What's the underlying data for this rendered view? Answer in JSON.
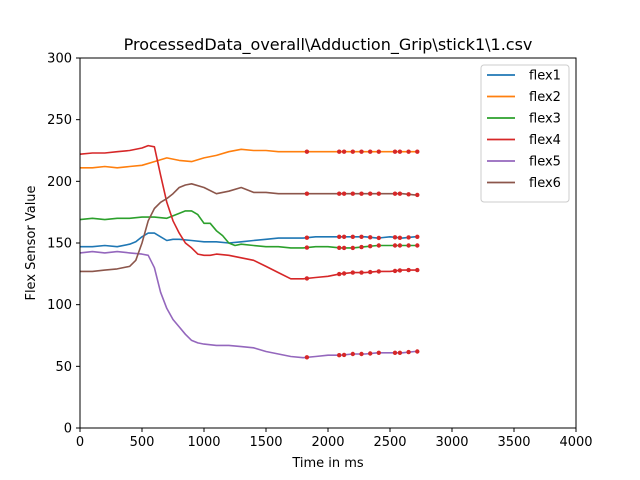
{
  "chart_data": {
    "type": "line",
    "title": "ProcessedData_overall\\Adduction_Grip\\stick1\\1.csv",
    "xlabel": "Time in ms",
    "ylabel": "Flex Sensor Value",
    "xlim": [
      0,
      4000
    ],
    "ylim": [
      0,
      300
    ],
    "xticks": [
      0,
      500,
      1000,
      1500,
      2000,
      2500,
      3000,
      3500,
      4000
    ],
    "yticks": [
      0,
      50,
      100,
      150,
      200,
      250,
      300
    ],
    "grid": false,
    "legend_position": "top-right",
    "marker_color": "#d62728",
    "marker_x": [
      1830,
      2090,
      2130,
      2200,
      2270,
      2340,
      2410,
      2540,
      2580,
      2650,
      2720
    ],
    "series": [
      {
        "name": "flex1",
        "color": "#1f77b4",
        "x": [
          0,
          100,
          200,
          300,
          400,
          450,
          500,
          550,
          600,
          650,
          700,
          750,
          800,
          900,
          1000,
          1100,
          1200,
          1300,
          1400,
          1500,
          1600,
          1700,
          1800,
          1900,
          2000,
          2100,
          2200,
          2300,
          2400,
          2500,
          2600,
          2700,
          2730
        ],
        "values": [
          147,
          147,
          148,
          147,
          149,
          151,
          155,
          158,
          158,
          155,
          152,
          153,
          153,
          152,
          151,
          151,
          150,
          151,
          152,
          153,
          154,
          154,
          154,
          155,
          155,
          155,
          155,
          155,
          154,
          155,
          154,
          155,
          155
        ]
      },
      {
        "name": "flex2",
        "color": "#ff7f0e",
        "x": [
          0,
          100,
          200,
          300,
          400,
          500,
          600,
          700,
          800,
          900,
          1000,
          1100,
          1200,
          1300,
          1400,
          1500,
          1600,
          1700,
          1800,
          1900,
          2000,
          2100,
          2200,
          2300,
          2400,
          2500,
          2600,
          2700,
          2730
        ],
        "values": [
          211,
          211,
          212,
          211,
          212,
          213,
          216,
          219,
          217,
          216,
          219,
          221,
          224,
          226,
          225,
          225,
          224,
          224,
          224,
          224,
          224,
          224,
          224,
          224,
          224,
          224,
          224,
          224,
          224
        ]
      },
      {
        "name": "flex3",
        "color": "#2ca02c",
        "x": [
          0,
          100,
          200,
          300,
          400,
          500,
          600,
          700,
          800,
          850,
          900,
          950,
          1000,
          1050,
          1100,
          1150,
          1200,
          1250,
          1300,
          1400,
          1500,
          1600,
          1700,
          1800,
          1900,
          2000,
          2100,
          2200,
          2300,
          2400,
          2500,
          2600,
          2700,
          2730
        ],
        "values": [
          169,
          170,
          169,
          170,
          170,
          171,
          171,
          170,
          174,
          176,
          176,
          173,
          166,
          166,
          160,
          156,
          150,
          148,
          149,
          148,
          147,
          147,
          146,
          146,
          147,
          147,
          146,
          146,
          147,
          148,
          148,
          148,
          148,
          148
        ]
      },
      {
        "name": "flex4",
        "color": "#d62728",
        "x": [
          0,
          100,
          200,
          300,
          400,
          500,
          550,
          600,
          650,
          700,
          750,
          800,
          850,
          900,
          950,
          1000,
          1050,
          1100,
          1200,
          1300,
          1400,
          1500,
          1600,
          1700,
          1800,
          1900,
          2000,
          2100,
          2200,
          2300,
          2400,
          2500,
          2600,
          2700,
          2730
        ],
        "values": [
          222,
          223,
          223,
          224,
          225,
          227,
          229,
          228,
          205,
          183,
          168,
          158,
          150,
          146,
          141,
          140,
          140,
          141,
          140,
          138,
          136,
          131,
          126,
          121,
          121,
          122,
          123,
          125,
          126,
          126,
          127,
          127,
          128,
          128,
          128
        ]
      },
      {
        "name": "flex5",
        "color": "#9467bd",
        "x": [
          0,
          100,
          200,
          300,
          400,
          500,
          550,
          600,
          650,
          700,
          750,
          800,
          850,
          900,
          950,
          1000,
          1100,
          1200,
          1300,
          1400,
          1500,
          1600,
          1700,
          1800,
          1900,
          2000,
          2100,
          2200,
          2300,
          2400,
          2500,
          2600,
          2700,
          2730
        ],
        "values": [
          142,
          143,
          142,
          143,
          142,
          141,
          140,
          130,
          110,
          97,
          88,
          82,
          76,
          71,
          69,
          68,
          67,
          67,
          66,
          65,
          62,
          60,
          58,
          57,
          58,
          59,
          59,
          60,
          60,
          61,
          61,
          61,
          62,
          62
        ]
      },
      {
        "name": "flex6",
        "color": "#8c564b",
        "x": [
          0,
          100,
          200,
          300,
          400,
          450,
          500,
          550,
          600,
          650,
          700,
          750,
          800,
          850,
          900,
          1000,
          1100,
          1200,
          1300,
          1400,
          1500,
          1600,
          1700,
          1800,
          1900,
          2000,
          2100,
          2200,
          2300,
          2400,
          2500,
          2600,
          2700,
          2730
        ],
        "values": [
          127,
          127,
          128,
          129,
          131,
          136,
          150,
          168,
          178,
          183,
          186,
          190,
          195,
          197,
          198,
          195,
          190,
          192,
          195,
          191,
          191,
          190,
          190,
          190,
          190,
          190,
          190,
          190,
          190,
          190,
          190,
          190,
          189,
          189
        ]
      }
    ]
  }
}
